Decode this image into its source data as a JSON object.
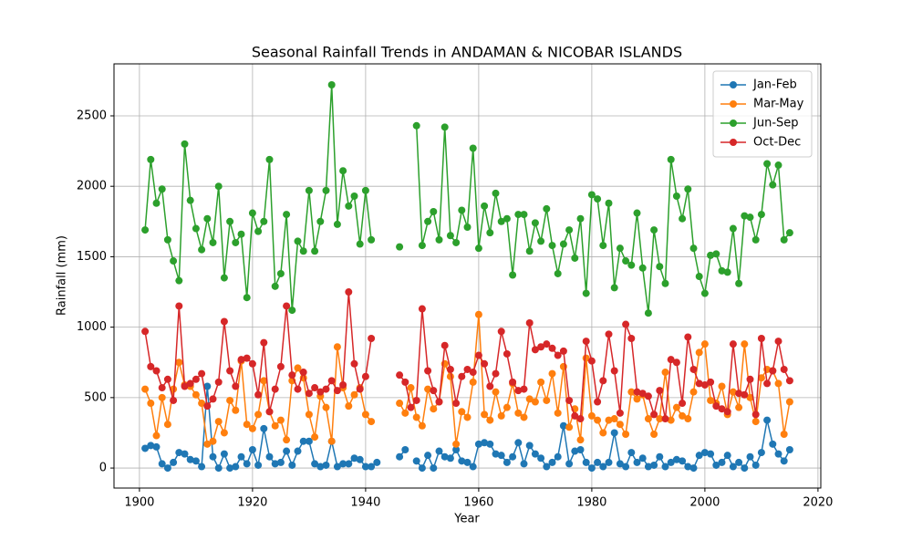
{
  "chart_data": {
    "type": "line",
    "title": "Seasonal Rainfall Trends in ANDAMAN & NICOBAR ISLANDS",
    "xlabel": "Year",
    "ylabel": "Rainfall (mm)",
    "x": [
      1901,
      1902,
      1903,
      1904,
      1905,
      1906,
      1907,
      1908,
      1909,
      1910,
      1911,
      1912,
      1913,
      1914,
      1915,
      1916,
      1917,
      1918,
      1919,
      1920,
      1921,
      1922,
      1923,
      1924,
      1925,
      1926,
      1927,
      1928,
      1929,
      1930,
      1931,
      1932,
      1933,
      1934,
      1935,
      1936,
      1937,
      1938,
      1939,
      1940,
      1941,
      1942,
      1943,
      1944,
      1945,
      1946,
      1947,
      1948,
      1949,
      1950,
      1951,
      1952,
      1953,
      1954,
      1955,
      1956,
      1957,
      1958,
      1959,
      1960,
      1961,
      1962,
      1963,
      1964,
      1965,
      1966,
      1967,
      1968,
      1969,
      1970,
      1971,
      1972,
      1973,
      1974,
      1975,
      1976,
      1977,
      1978,
      1979,
      1980,
      1981,
      1982,
      1983,
      1984,
      1985,
      1986,
      1987,
      1988,
      1989,
      1990,
      1991,
      1992,
      1993,
      1994,
      1995,
      1996,
      1997,
      1998,
      1999,
      2000,
      2001,
      2002,
      2003,
      2004,
      2005,
      2006,
      2007,
      2008,
      2009,
      2010,
      2011,
      2012,
      2013,
      2014,
      2015
    ],
    "series": [
      {
        "name": "Jan-Feb",
        "color": "#1f77b4",
        "values": [
          140,
          160,
          150,
          30,
          0,
          40,
          110,
          100,
          60,
          50,
          10,
          580,
          80,
          0,
          100,
          0,
          10,
          80,
          30,
          130,
          20,
          280,
          80,
          30,
          40,
          120,
          20,
          120,
          190,
          190,
          30,
          10,
          20,
          190,
          10,
          30,
          30,
          70,
          60,
          10,
          10,
          40,
          null,
          null,
          null,
          80,
          130,
          null,
          50,
          0,
          90,
          0,
          120,
          80,
          70,
          130,
          50,
          40,
          10,
          170,
          180,
          170,
          100,
          90,
          40,
          80,
          180,
          30,
          160,
          100,
          70,
          10,
          40,
          80,
          300,
          30,
          120,
          130,
          40,
          0,
          40,
          10,
          40,
          250,
          30,
          10,
          110,
          40,
          70,
          10,
          20,
          80,
          10,
          40,
          60,
          50,
          10,
          0,
          90,
          110,
          100,
          20,
          40,
          90,
          10,
          40,
          0,
          80,
          20,
          110,
          340,
          170,
          100,
          50,
          130
        ]
      },
      {
        "name": "Mar-May",
        "color": "#ff7f0e",
        "values": [
          560,
          460,
          230,
          500,
          310,
          560,
          750,
          590,
          580,
          520,
          460,
          170,
          190,
          330,
          250,
          480,
          410,
          760,
          310,
          280,
          380,
          620,
          400,
          300,
          340,
          200,
          620,
          710,
          640,
          380,
          220,
          510,
          430,
          190,
          860,
          570,
          440,
          520,
          570,
          380,
          330,
          null,
          null,
          null,
          null,
          460,
          390,
          570,
          360,
          300,
          560,
          420,
          470,
          740,
          650,
          170,
          400,
          360,
          610,
          1090,
          380,
          340,
          540,
          370,
          430,
          600,
          390,
          360,
          490,
          470,
          610,
          480,
          670,
          390,
          720,
          290,
          420,
          200,
          780,
          370,
          340,
          250,
          340,
          350,
          310,
          240,
          540,
          490,
          520,
          350,
          240,
          350,
          680,
          340,
          430,
          370,
          350,
          540,
          820,
          880,
          480,
          460,
          580,
          380,
          540,
          430,
          880,
          500,
          330,
          640,
          700,
          690,
          600,
          240,
          470
        ]
      },
      {
        "name": "Jun-Sep",
        "color": "#2ca02c",
        "values": [
          1690,
          2190,
          1880,
          1980,
          1620,
          1470,
          1330,
          2300,
          1900,
          1700,
          1550,
          1770,
          1600,
          2000,
          1350,
          1750,
          1600,
          1660,
          1210,
          1810,
          1680,
          1750,
          2190,
          1290,
          1380,
          1800,
          1120,
          1610,
          1540,
          1970,
          1540,
          1750,
          1970,
          2720,
          1730,
          2110,
          1860,
          1930,
          1590,
          1970,
          1620,
          null,
          null,
          null,
          null,
          1570,
          null,
          null,
          2430,
          1580,
          1750,
          1820,
          1620,
          2420,
          1650,
          1600,
          1830,
          1710,
          2270,
          1560,
          1860,
          1670,
          1950,
          1750,
          1770,
          1370,
          1800,
          1800,
          1540,
          1740,
          1610,
          1840,
          1580,
          1380,
          1590,
          1690,
          1490,
          1770,
          1240,
          1940,
          1910,
          1580,
          1880,
          1280,
          1560,
          1470,
          1440,
          1810,
          1420,
          1100,
          1690,
          1430,
          1310,
          2190,
          1930,
          1770,
          1980,
          1560,
          1360,
          1240,
          1510,
          1520,
          1400,
          1390,
          1700,
          1310,
          1790,
          1780,
          1620,
          1800,
          2160,
          2010,
          2150,
          1620,
          1670
        ]
      },
      {
        "name": "Oct-Dec",
        "color": "#d62728",
        "values": [
          970,
          720,
          690,
          570,
          630,
          480,
          1150,
          580,
          600,
          630,
          670,
          440,
          490,
          610,
          1040,
          690,
          580,
          770,
          780,
          740,
          520,
          890,
          400,
          560,
          720,
          1150,
          660,
          560,
          680,
          530,
          570,
          540,
          560,
          620,
          550,
          590,
          1250,
          740,
          560,
          650,
          920,
          null,
          null,
          null,
          null,
          660,
          610,
          430,
          480,
          1130,
          690,
          550,
          470,
          870,
          700,
          460,
          650,
          700,
          680,
          800,
          740,
          580,
          670,
          970,
          810,
          610,
          550,
          560,
          1030,
          840,
          860,
          880,
          850,
          800,
          830,
          480,
          370,
          350,
          900,
          760,
          470,
          620,
          950,
          690,
          390,
          1020,
          920,
          540,
          530,
          510,
          380,
          550,
          350,
          770,
          750,
          460,
          930,
          700,
          600,
          590,
          610,
          440,
          420,
          400,
          880,
          530,
          520,
          630,
          380,
          920,
          600,
          690,
          900,
          700,
          620
        ]
      }
    ],
    "xlim": [
      1895.5,
      2020.5
    ],
    "xticks": [
      1900,
      1920,
      1940,
      1960,
      1980,
      2000,
      2020
    ],
    "ylim": [
      -142,
      2869
    ],
    "yticks": [
      0,
      500,
      1000,
      1500,
      2000,
      2500
    ],
    "grid": true,
    "legend": "upper right"
  }
}
